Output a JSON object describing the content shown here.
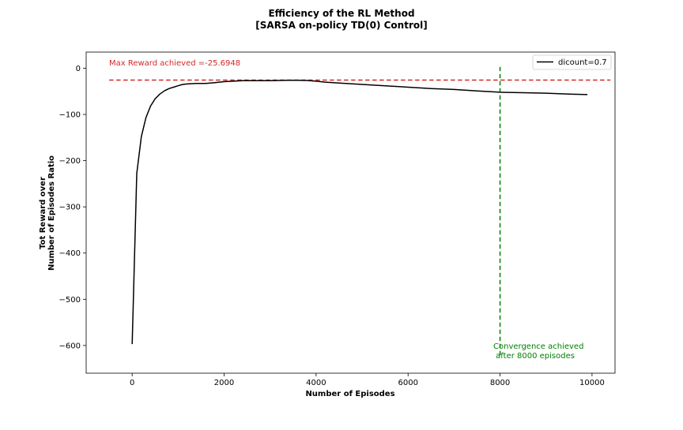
{
  "chart_data": {
    "type": "line",
    "title": "Efficiency of the RL Method",
    "subtitle": "[SARSA on-policy TD(0) Control]",
    "xlabel": "Number of Episodes",
    "ylabel_line1": "Tot Reward over",
    "ylabel_line2": "Number of Episodes Ratio",
    "xlim": [
      -1000,
      10500
    ],
    "ylim": [
      -660,
      35
    ],
    "x_ticks": [
      0,
      2000,
      4000,
      6000,
      8000,
      10000
    ],
    "x_tick_labels": [
      "0",
      "2000",
      "4000",
      "6000",
      "8000",
      "10000"
    ],
    "y_ticks": [
      0,
      -100,
      -200,
      -300,
      -400,
      -500,
      -600
    ],
    "y_tick_labels": [
      "0",
      "−100",
      "−200",
      "−300",
      "−400",
      "−500",
      "−600"
    ],
    "grid": false,
    "legend_position": "top-right",
    "series": [
      {
        "name": "dicount=0.7",
        "color": "#000000",
        "x": [
          0,
          100,
          200,
          300,
          400,
          500,
          600,
          700,
          800,
          900,
          1000,
          1100,
          1200,
          1400,
          1600,
          1800,
          2000,
          2200,
          2400,
          2600,
          2800,
          3000,
          3200,
          3400,
          3600,
          3800,
          4000,
          4200,
          4500,
          5000,
          5500,
          6000,
          6500,
          7000,
          7500,
          8000,
          8500,
          9000,
          9500,
          9900
        ],
        "y": [
          -597,
          -228,
          -148,
          -107,
          -82,
          -66,
          -56,
          -49,
          -44,
          -41,
          -38,
          -35,
          -34,
          -33,
          -33,
          -31,
          -29,
          -28,
          -27,
          -27,
          -27,
          -27,
          -26.5,
          -26,
          -26,
          -26.5,
          -28,
          -30,
          -32,
          -35,
          -38,
          -41,
          -44,
          -46,
          -49,
          -52,
          -53,
          -54,
          -56,
          -57
        ]
      }
    ],
    "reference_lines": [
      {
        "orientation": "horizontal",
        "value": -25.6948,
        "x_range": [
          -500,
          10400
        ],
        "color": "#d62728",
        "style": "dashed",
        "label": "Max Reward achieved =-25.6948"
      },
      {
        "orientation": "vertical",
        "value": 8000,
        "y_range": [
          -625,
          3
        ],
        "color": "#008000",
        "style": "dashed",
        "label_line1": "Convergence achieved",
        "label_line2": " after 8000 episodes"
      }
    ]
  }
}
